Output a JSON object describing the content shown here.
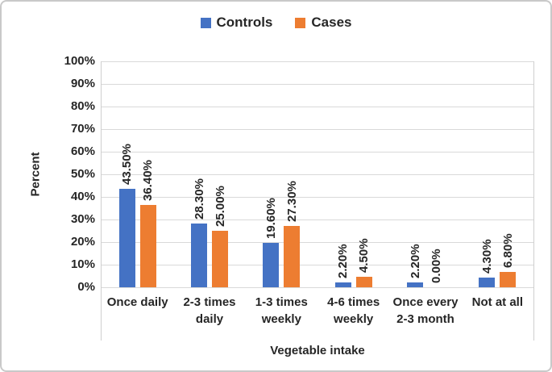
{
  "chart_data": {
    "type": "bar",
    "title": "",
    "xlabel": "Vegetable intake",
    "ylabel": "Percent",
    "categories": [
      "Once daily",
      "2-3 times\ndaily",
      "1-3 times\nweekly",
      "4-6 times\nweekly",
      "Once every\n2-3 month",
      "Not at all"
    ],
    "series": [
      {
        "name": "Controls",
        "color": "#4472C4",
        "values": [
          43.5,
          28.3,
          19.6,
          2.2,
          2.2,
          4.3
        ],
        "labels": [
          "43.50%",
          "28.30%",
          "19.60%",
          "2.20%",
          "2.20%",
          "4.30%"
        ]
      },
      {
        "name": "Cases",
        "color": "#ED7D31",
        "values": [
          36.4,
          25.0,
          27.3,
          4.5,
          0.0,
          6.8
        ],
        "labels": [
          "36.40%",
          "25.00%",
          "27.30%",
          "4.50%",
          "0.00%",
          "6.80%"
        ]
      }
    ],
    "ylim": [
      0,
      100
    ],
    "ytick_step": 10,
    "ytick_suffix": "%",
    "grid": "horizontal",
    "legend_position": "top",
    "data_labels_rotated": true
  },
  "colors": {
    "grid": "#d9d9d9",
    "text": "#262626",
    "frame_border": "#c9c9c9",
    "background": "#ffffff"
  }
}
